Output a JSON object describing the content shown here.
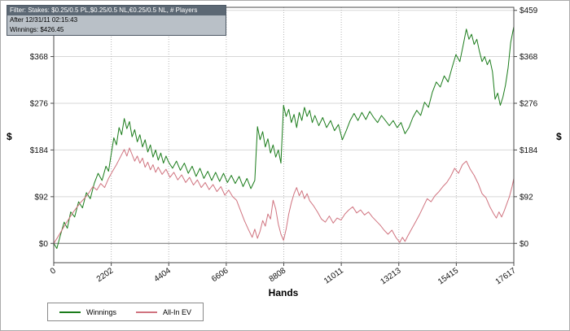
{
  "info_box": {
    "line1": "Filter: Stakes: $0.25/0.5 PL,$0.25/0.5 NL,€0.25/0.5 NL, # Players",
    "line2": "After 12/31/11 02:15:43",
    "line3": "Winnings: $426.45",
    "header_bg": "#5c6874",
    "body_bg": "#b9c0c7"
  },
  "chart_data": {
    "type": "line",
    "title": "",
    "xlabel": "Hands",
    "ylabel_left": "$",
    "ylabel_right": "$",
    "xlim": [
      0,
      17617
    ],
    "ylim": [
      -38,
      465
    ],
    "x_ticks": [
      0,
      2202,
      4404,
      6606,
      8808,
      11011,
      13213,
      15415,
      17617
    ],
    "x_tick_labels": [
      "0",
      "2202",
      "4404",
      "6606",
      "8808",
      "11011",
      "13213",
      "15415",
      "17617"
    ],
    "y_ticks": [
      0,
      92,
      184,
      276,
      368,
      459
    ],
    "y_tick_labels": [
      "$0",
      "$92",
      "$184",
      "$276",
      "$368",
      "$459"
    ],
    "grid": {
      "horizontal": "solid",
      "vertical": "dotted"
    },
    "legend_position": "bottom-left",
    "series": [
      {
        "name": "Winnings",
        "color": "#1b7c1b",
        "points": [
          [
            0,
            0
          ],
          [
            120,
            -10
          ],
          [
            250,
            15
          ],
          [
            400,
            42
          ],
          [
            520,
            30
          ],
          [
            650,
            62
          ],
          [
            800,
            52
          ],
          [
            950,
            82
          ],
          [
            1100,
            70
          ],
          [
            1250,
            100
          ],
          [
            1400,
            88
          ],
          [
            1550,
            118
          ],
          [
            1700,
            138
          ],
          [
            1850,
            124
          ],
          [
            2000,
            152
          ],
          [
            2100,
            142
          ],
          [
            2200,
            176
          ],
          [
            2300,
            208
          ],
          [
            2400,
            194
          ],
          [
            2500,
            228
          ],
          [
            2600,
            214
          ],
          [
            2700,
            246
          ],
          [
            2800,
            226
          ],
          [
            2900,
            240
          ],
          [
            3000,
            210
          ],
          [
            3100,
            224
          ],
          [
            3200,
            200
          ],
          [
            3300,
            214
          ],
          [
            3400,
            190
          ],
          [
            3500,
            204
          ],
          [
            3600,
            180
          ],
          [
            3700,
            194
          ],
          [
            3800,
            170
          ],
          [
            3900,
            184
          ],
          [
            4000,
            164
          ],
          [
            4100,
            178
          ],
          [
            4200,
            158
          ],
          [
            4300,
            172
          ],
          [
            4400,
            160
          ],
          [
            4550,
            148
          ],
          [
            4700,
            162
          ],
          [
            4850,
            144
          ],
          [
            5000,
            158
          ],
          [
            5150,
            138
          ],
          [
            5300,
            152
          ],
          [
            5450,
            132
          ],
          [
            5600,
            148
          ],
          [
            5750,
            128
          ],
          [
            5900,
            142
          ],
          [
            6050,
            124
          ],
          [
            6200,
            140
          ],
          [
            6350,
            122
          ],
          [
            6500,
            138
          ],
          [
            6650,
            120
          ],
          [
            6800,
            134
          ],
          [
            6950,
            118
          ],
          [
            7100,
            132
          ],
          [
            7250,
            112
          ],
          [
            7400,
            128
          ],
          [
            7550,
            108
          ],
          [
            7700,
            124
          ],
          [
            7800,
            230
          ],
          [
            7900,
            204
          ],
          [
            8000,
            220
          ],
          [
            8100,
            190
          ],
          [
            8200,
            206
          ],
          [
            8300,
            178
          ],
          [
            8400,
            194
          ],
          [
            8500,
            170
          ],
          [
            8600,
            184
          ],
          [
            8700,
            158
          ],
          [
            8800,
            272
          ],
          [
            8900,
            250
          ],
          [
            9000,
            264
          ],
          [
            9100,
            238
          ],
          [
            9200,
            254
          ],
          [
            9300,
            228
          ],
          [
            9400,
            258
          ],
          [
            9500,
            242
          ],
          [
            9600,
            268
          ],
          [
            9700,
            250
          ],
          [
            9800,
            262
          ],
          [
            9900,
            238
          ],
          [
            10000,
            252
          ],
          [
            10150,
            232
          ],
          [
            10300,
            248
          ],
          [
            10450,
            228
          ],
          [
            10600,
            242
          ],
          [
            10750,
            222
          ],
          [
            10900,
            234
          ],
          [
            11050,
            204
          ],
          [
            11200,
            222
          ],
          [
            11350,
            242
          ],
          [
            11500,
            256
          ],
          [
            11650,
            242
          ],
          [
            11800,
            258
          ],
          [
            11950,
            244
          ],
          [
            12100,
            260
          ],
          [
            12250,
            248
          ],
          [
            12400,
            238
          ],
          [
            12550,
            252
          ],
          [
            12700,
            242
          ],
          [
            12850,
            232
          ],
          [
            13000,
            242
          ],
          [
            13150,
            228
          ],
          [
            13300,
            238
          ],
          [
            13450,
            216
          ],
          [
            13600,
            228
          ],
          [
            13750,
            248
          ],
          [
            13900,
            262
          ],
          [
            14050,
            252
          ],
          [
            14200,
            278
          ],
          [
            14350,
            268
          ],
          [
            14500,
            298
          ],
          [
            14650,
            318
          ],
          [
            14800,
            308
          ],
          [
            14950,
            330
          ],
          [
            15100,
            318
          ],
          [
            15250,
            346
          ],
          [
            15400,
            372
          ],
          [
            15550,
            358
          ],
          [
            15700,
            396
          ],
          [
            15800,
            422
          ],
          [
            15900,
            402
          ],
          [
            16000,
            412
          ],
          [
            16100,
            392
          ],
          [
            16200,
            402
          ],
          [
            16300,
            378
          ],
          [
            16400,
            358
          ],
          [
            16500,
            368
          ],
          [
            16600,
            352
          ],
          [
            16700,
            362
          ],
          [
            16800,
            338
          ],
          [
            16900,
            284
          ],
          [
            17000,
            296
          ],
          [
            17100,
            272
          ],
          [
            17200,
            288
          ],
          [
            17300,
            312
          ],
          [
            17400,
            346
          ],
          [
            17500,
            396
          ],
          [
            17617,
            427
          ]
        ]
      },
      {
        "name": "All-In EV",
        "color": "#d0737f",
        "points": [
          [
            0,
            0
          ],
          [
            150,
            12
          ],
          [
            300,
            25
          ],
          [
            450,
            38
          ],
          [
            600,
            50
          ],
          [
            750,
            62
          ],
          [
            900,
            72
          ],
          [
            1050,
            82
          ],
          [
            1200,
            90
          ],
          [
            1350,
            100
          ],
          [
            1500,
            112
          ],
          [
            1650,
            105
          ],
          [
            1800,
            118
          ],
          [
            1950,
            110
          ],
          [
            2100,
            128
          ],
          [
            2250,
            142
          ],
          [
            2400,
            155
          ],
          [
            2550,
            170
          ],
          [
            2700,
            185
          ],
          [
            2800,
            172
          ],
          [
            2900,
            188
          ],
          [
            3000,
            175
          ],
          [
            3100,
            162
          ],
          [
            3200,
            172
          ],
          [
            3300,
            158
          ],
          [
            3400,
            168
          ],
          [
            3500,
            150
          ],
          [
            3600,
            160
          ],
          [
            3700,
            145
          ],
          [
            3800,
            155
          ],
          [
            3900,
            140
          ],
          [
            4000,
            150
          ],
          [
            4150,
            136
          ],
          [
            4300,
            146
          ],
          [
            4450,
            130
          ],
          [
            4600,
            140
          ],
          [
            4750,
            125
          ],
          [
            4900,
            135
          ],
          [
            5050,
            120
          ],
          [
            5200,
            130
          ],
          [
            5350,
            115
          ],
          [
            5500,
            125
          ],
          [
            5650,
            110
          ],
          [
            5800,
            120
          ],
          [
            5950,
            106
          ],
          [
            6100,
            116
          ],
          [
            6250,
            102
          ],
          [
            6400,
            112
          ],
          [
            6550,
            95
          ],
          [
            6700,
            105
          ],
          [
            6850,
            92
          ],
          [
            7000,
            85
          ],
          [
            7150,
            65
          ],
          [
            7300,
            45
          ],
          [
            7450,
            28
          ],
          [
            7600,
            12
          ],
          [
            7700,
            28
          ],
          [
            7800,
            10
          ],
          [
            7900,
            24
          ],
          [
            8000,
            45
          ],
          [
            8100,
            34
          ],
          [
            8200,
            58
          ],
          [
            8300,
            48
          ],
          [
            8400,
            85
          ],
          [
            8500,
            68
          ],
          [
            8600,
            38
          ],
          [
            8700,
            18
          ],
          [
            8800,
            6
          ],
          [
            8900,
            28
          ],
          [
            9000,
            58
          ],
          [
            9100,
            80
          ],
          [
            9200,
            98
          ],
          [
            9300,
            110
          ],
          [
            9400,
            94
          ],
          [
            9500,
            104
          ],
          [
            9600,
            88
          ],
          [
            9700,
            98
          ],
          [
            9800,
            84
          ],
          [
            9950,
            74
          ],
          [
            10100,
            62
          ],
          [
            10250,
            48
          ],
          [
            10400,
            42
          ],
          [
            10550,
            54
          ],
          [
            10700,
            40
          ],
          [
            10850,
            50
          ],
          [
            11000,
            46
          ],
          [
            11150,
            58
          ],
          [
            11300,
            66
          ],
          [
            11450,
            72
          ],
          [
            11600,
            60
          ],
          [
            11750,
            66
          ],
          [
            11900,
            56
          ],
          [
            12050,
            62
          ],
          [
            12200,
            52
          ],
          [
            12350,
            44
          ],
          [
            12500,
            36
          ],
          [
            12650,
            26
          ],
          [
            12800,
            18
          ],
          [
            12950,
            26
          ],
          [
            13100,
            12
          ],
          [
            13250,
            2
          ],
          [
            13350,
            12
          ],
          [
            13450,
            4
          ],
          [
            13550,
            14
          ],
          [
            13700,
            28
          ],
          [
            13850,
            42
          ],
          [
            14000,
            56
          ],
          [
            14150,
            72
          ],
          [
            14300,
            88
          ],
          [
            14450,
            82
          ],
          [
            14600,
            94
          ],
          [
            14750,
            102
          ],
          [
            14900,
            112
          ],
          [
            15050,
            120
          ],
          [
            15200,
            132
          ],
          [
            15350,
            148
          ],
          [
            15500,
            138
          ],
          [
            15650,
            155
          ],
          [
            15800,
            162
          ],
          [
            15950,
            146
          ],
          [
            16100,
            134
          ],
          [
            16250,
            118
          ],
          [
            16400,
            98
          ],
          [
            16550,
            90
          ],
          [
            16700,
            72
          ],
          [
            16850,
            58
          ],
          [
            16950,
            50
          ],
          [
            17050,
            62
          ],
          [
            17150,
            52
          ],
          [
            17250,
            64
          ],
          [
            17350,
            78
          ],
          [
            17450,
            92
          ],
          [
            17550,
            112
          ],
          [
            17617,
            128
          ]
        ]
      }
    ]
  }
}
